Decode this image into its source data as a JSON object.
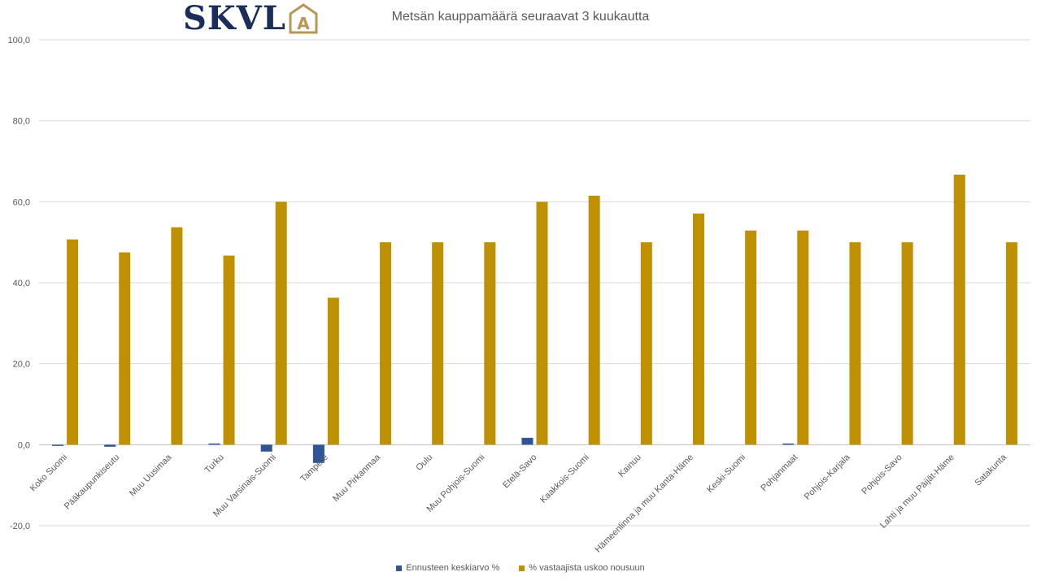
{
  "logo": {
    "text": "SKVL",
    "mark_letter": "A"
  },
  "colors": {
    "series1": "#2f5597",
    "series2": "#bf9000",
    "grid": "#d9d9d9",
    "axis": "#bfbfbf",
    "logo_dark": "#1b2d5b",
    "logo_gold": "#b8965a"
  },
  "chart_data": {
    "type": "bar",
    "title": "Metsän kauppamäärä seuraavat 3 kuukautta",
    "categories": [
      "Koko Suomi",
      "Pääkaupunkiseutu",
      "Muu Uusimaa",
      "Turku",
      "Muu Varsinais-Suomi",
      "Tampere",
      "Muu Pirkanmaa",
      "Oulu",
      "Muu Pohjois-Suomi",
      "Etelä-Savo",
      "Kaakkois-Suomi",
      "Kainuu",
      "Hämeenlinna ja muu Kanta-Häme",
      "Keski-Suomi",
      "Pohjanmaat",
      "Pohjois-Karjala",
      "Pohjois-Savo",
      "Lahti ja muu Päijät-Häme",
      "Satakunta"
    ],
    "series": [
      {
        "name": "Ennusteen keskiarvo %",
        "values": [
          -0.3,
          -0.5,
          0,
          0.3,
          -1.7,
          -4.5,
          0,
          0,
          0,
          1.7,
          0,
          0,
          0,
          0,
          0.3,
          0,
          0,
          0,
          0
        ]
      },
      {
        "name": "% vastaajista uskoo  nousuun",
        "values": [
          50.7,
          47.5,
          53.7,
          46.7,
          60.0,
          36.3,
          50.0,
          50.0,
          50.0,
          60.0,
          61.5,
          50.0,
          57.1,
          52.9,
          52.9,
          50.0,
          50.0,
          66.7,
          50.0
        ]
      }
    ],
    "ylim": [
      -20,
      100
    ],
    "yticks": [
      "-20,0",
      "0,0",
      "20,0",
      "40,0",
      "60,0",
      "80,0",
      "100,0"
    ],
    "ytick_values": [
      -20,
      0,
      20,
      40,
      60,
      80,
      100
    ],
    "grid": true,
    "legend_position": "bottom"
  }
}
